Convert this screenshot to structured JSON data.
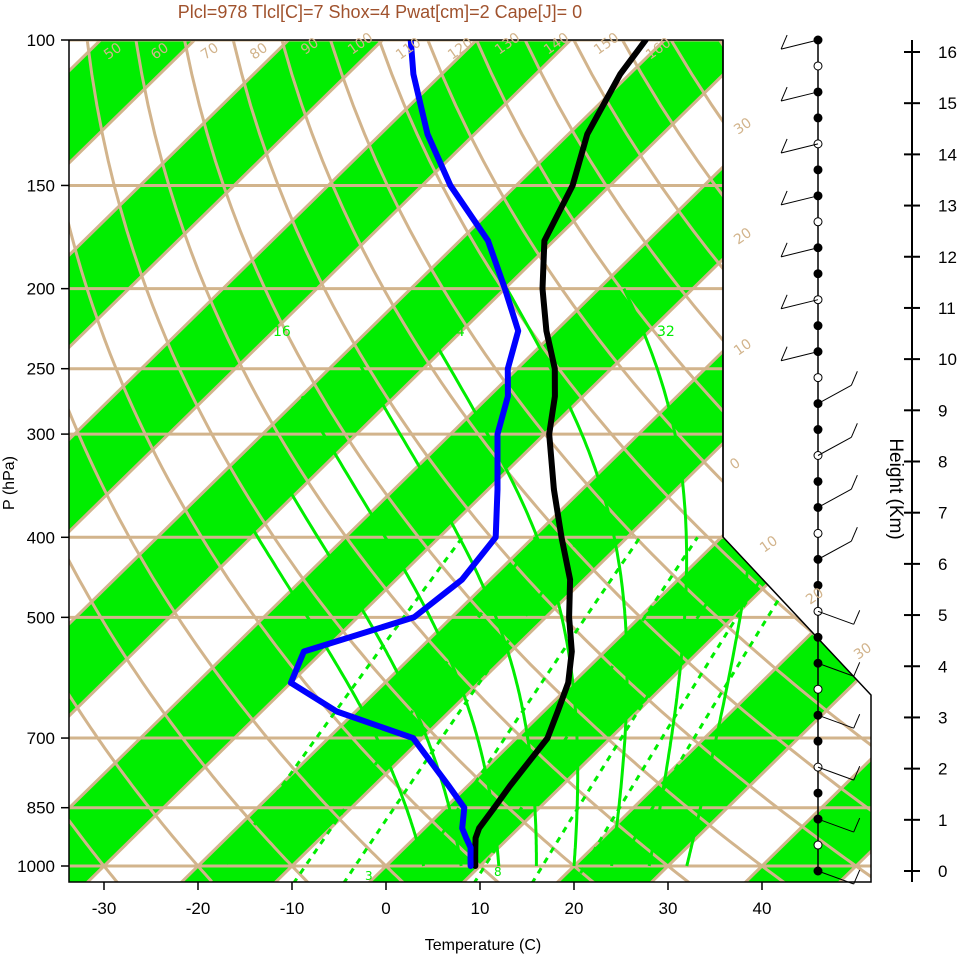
{
  "title": "Plcl=978 Tlcl[C]=7 Shox=4 Pwat[cm]=2 Cape[J]= 0",
  "chart_data": {
    "type": "line",
    "title": "Plcl=978 Tlcl[C]=7 Shox=4 Pwat[cm]=2 Cape[J]= 0",
    "xlabel": "Temperature (C)",
    "ylabel": "P (hPa)",
    "y2label": "Height (Km)",
    "xlim": [
      -33,
      50
    ],
    "ylim_hpa": [
      1050,
      100
    ],
    "y_scale": "skew-T log-p",
    "x_ticks": [
      "-30",
      "-20",
      "-10",
      "0",
      "10",
      "20",
      "30",
      "40"
    ],
    "p_ticks": [
      "100",
      "150",
      "200",
      "250",
      "300",
      "400",
      "500",
      "700",
      "850",
      "1000"
    ],
    "height_ticks": [
      "0",
      "1",
      "2",
      "3",
      "4",
      "5",
      "6",
      "7",
      "8",
      "9",
      "10",
      "11",
      "12",
      "13",
      "14",
      "15",
      "16"
    ],
    "temperature_colors": {
      "band": "#00ee00",
      "isotherm": "#d2b48c",
      "temperature": "#000000",
      "dewpoint": "#0000ff",
      "mixing_ratio": "#00ee00"
    },
    "isotherm_labels": [
      "40",
      "30",
      "20",
      "10",
      "0",
      "-10",
      "-20",
      "-30"
    ],
    "dry_adiabat_labels": [
      "50",
      "60",
      "70",
      "80",
      "90",
      "100",
      "110",
      "120",
      "130",
      "140",
      "150",
      "160",
      "30",
      "20",
      "10",
      "0",
      "10",
      "20",
      "30"
    ],
    "moist_adiabat_labels": [
      "16",
      "24",
      "32"
    ],
    "mixing_ratio_labels": [
      "3",
      "8"
    ],
    "series": [
      {
        "name": "",
        "values": [
          [
            1000,
            9.5
          ],
          [
            975,
            8.5
          ],
          [
            950,
            7.5
          ],
          [
            925,
            6.5
          ],
          [
            900,
            5.8
          ],
          [
            850,
            5.2
          ],
          [
            800,
            4.5
          ],
          [
            700,
            3.3
          ],
          [
            650,
            1.5
          ],
          [
            600,
            -0.5
          ],
          [
            550,
            -3.5
          ],
          [
            500,
            -7.5
          ],
          [
            450,
            -11.5
          ],
          [
            400,
            -17
          ],
          [
            350,
            -23
          ],
          [
            300,
            -29.5
          ],
          [
            270,
            -33
          ],
          [
            250,
            -36
          ],
          [
            225,
            -41
          ],
          [
            200,
            -46
          ],
          [
            175,
            -51
          ],
          [
            150,
            -54
          ],
          [
            130,
            -58
          ],
          [
            110,
            -61
          ],
          [
            100,
            -62
          ]
        ]
      },
      {
        "name": "",
        "values": [
          [
            1000,
            9
          ],
          [
            975,
            8
          ],
          [
            950,
            7
          ],
          [
            925,
            5.5
          ],
          [
            900,
            4
          ],
          [
            850,
            2
          ],
          [
            800,
            -2
          ],
          [
            700,
            -11
          ],
          [
            650,
            -22
          ],
          [
            600,
            -30
          ],
          [
            550,
            -32
          ],
          [
            500,
            -24
          ],
          [
            450,
            -23
          ],
          [
            400,
            -24
          ],
          [
            350,
            -29
          ],
          [
            300,
            -35
          ],
          [
            270,
            -38
          ],
          [
            250,
            -41
          ],
          [
            225,
            -44
          ],
          [
            200,
            -50
          ],
          [
            175,
            -57
          ],
          [
            150,
            -67
          ],
          [
            130,
            -75
          ],
          [
            110,
            -83
          ],
          [
            100,
            -87
          ]
        ]
      }
    ],
    "wind_barbs_count": 33
  }
}
